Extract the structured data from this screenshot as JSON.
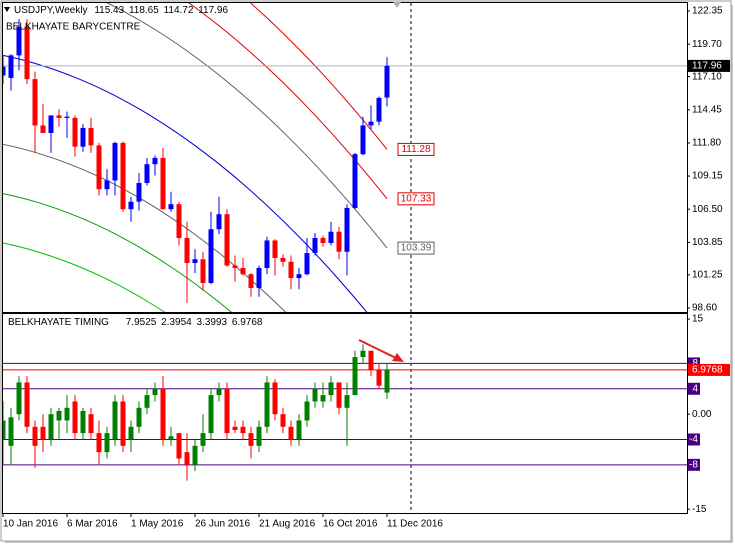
{
  "chart_data": [
    {
      "type": "candlestick",
      "symbol_label": "USDJPY,Weekly",
      "title": "BELKHAYATE BARYCENTRE",
      "categories": [
        "10 Jan 2016",
        null,
        null,
        null,
        null,
        null,
        null,
        null,
        "6 Mar 2016",
        null,
        null,
        null,
        null,
        null,
        null,
        null,
        "1 May 2016",
        null,
        null,
        null,
        null,
        null,
        null,
        null,
        "26 Jun 2016",
        null,
        null,
        null,
        null,
        null,
        null,
        null,
        "21 Aug 2016",
        null,
        null,
        null,
        null,
        null,
        null,
        null,
        "16 Oct 2016",
        null,
        null,
        null,
        null,
        null,
        null,
        null,
        "11 Dec 2016"
      ],
      "open": [
        117.2,
        117.0,
        118.8,
        121.1,
        116.9,
        113.2,
        112.6,
        114.0,
        113.8,
        113.8,
        111.5,
        113.0,
        111.6,
        108.1,
        108.8,
        111.8,
        106.5,
        107.1,
        108.6,
        110.1,
        110.6,
        106.5,
        106.9,
        104.2,
        102.2,
        102.5,
        100.6,
        104.9,
        106.1,
        102.0,
        101.8,
        101.3,
        100.2,
        101.8,
        104.0,
        102.6,
        102.3,
        101.0,
        101.3,
        103.0,
        104.2,
        103.8,
        104.7,
        103.1,
        106.6,
        110.9,
        113.2,
        113.5,
        115.43
      ],
      "high": [
        118.8,
        118.9,
        121.7,
        121.7,
        117.5,
        114.9,
        114.0,
        114.5,
        114.3,
        114.0,
        113.3,
        113.8,
        111.8,
        109.7,
        111.9,
        111.9,
        107.5,
        109.4,
        110.6,
        110.8,
        111.4,
        107.9,
        107.1,
        105.5,
        103.3,
        103.1,
        106.3,
        107.5,
        106.5,
        102.8,
        102.6,
        101.4,
        102.0,
        104.3,
        104.1,
        102.9,
        102.8,
        101.8,
        104.2,
        104.6,
        104.4,
        105.5,
        105.1,
        106.9,
        111.0,
        113.9,
        114.8,
        115.5,
        118.65
      ],
      "low": [
        116.5,
        115.98,
        117.6,
        116.5,
        110.99,
        112.6,
        111.0,
        113.1,
        112.2,
        110.7,
        111.1,
        111.0,
        107.6,
        107.6,
        107.6,
        106.3,
        105.5,
        106.4,
        108.4,
        109.2,
        106.5,
        106.3,
        103.6,
        99.0,
        101.4,
        99.99,
        100.5,
        104.5,
        101.9,
        100.7,
        101.2,
        99.5,
        99.5,
        101.3,
        101.2,
        101.9,
        100.1,
        100.1,
        101.2,
        102.8,
        103.5,
        103.6,
        102.5,
        101.2,
        106.5,
        110.8,
        112.9,
        113.2,
        114.72
      ],
      "close": [
        117.9,
        118.8,
        121.1,
        116.9,
        113.2,
        112.6,
        114.0,
        113.8,
        113.9,
        111.5,
        113.0,
        111.6,
        108.1,
        108.8,
        111.8,
        106.5,
        107.1,
        108.6,
        110.1,
        110.6,
        106.5,
        106.9,
        104.2,
        102.2,
        102.5,
        100.6,
        104.9,
        106.1,
        102.0,
        101.8,
        101.3,
        100.2,
        101.8,
        104.0,
        102.6,
        102.3,
        101.0,
        101.3,
        103.0,
        104.2,
        103.8,
        104.7,
        103.1,
        106.6,
        110.9,
        113.2,
        113.5,
        115.4,
        117.96
      ],
      "up_color": "#0000ff",
      "down_color": "#ff0000",
      "barycentre": {
        "color": "#0000cd",
        "values": [
          118.8,
          118.66,
          118.51,
          118.34,
          118.16,
          117.96,
          117.75,
          117.53,
          117.29,
          117.04,
          116.78,
          116.5,
          116.21,
          115.9,
          115.58,
          115.24,
          114.89,
          114.53,
          114.15,
          113.76,
          113.35,
          112.93,
          112.5,
          112.05,
          111.59,
          111.11,
          110.62,
          110.12,
          109.6,
          109.07,
          108.52,
          107.96,
          107.38,
          106.8,
          106.19,
          105.58,
          104.94,
          104.3,
          103.64,
          102.97,
          102.28,
          101.58,
          100.86,
          100.13,
          99.39,
          98.63,
          97.86,
          97.08,
          96.28
        ]
      },
      "bands": [
        {
          "color": "#606060",
          "offset": 7.11,
          "end_label": 103.39
        },
        {
          "color": "#e00000",
          "offset": 11.05,
          "end_label": 107.33
        },
        {
          "color": "#e00000",
          "offset": 15.0,
          "end_label": 111.28
        },
        {
          "color": "#606060",
          "offset": -7.11
        },
        {
          "color": "#00a000",
          "offset": -11.05
        },
        {
          "color": "#00c000",
          "offset": -15.0
        }
      ],
      "ylim": [
        98.28,
        123.07
      ],
      "yticks": [
        122.35,
        {
          "value": 119.7,
          "label": "119.70"
        },
        {
          "value": 117.1,
          "label": "117.10"
        },
        114.45,
        {
          "value": 111.8,
          "label": "111.80"
        },
        109.15,
        {
          "value": 106.5,
          "label": "106.50"
        },
        103.85,
        101.25,
        {
          "value": 98.6,
          "label": "98.60"
        }
      ]
    },
    {
      "type": "candlestick",
      "title": "BELKHAYATE TIMING",
      "high": [
        2,
        1,
        6,
        6,
        -1,
        0,
        1,
        1,
        3,
        3,
        1,
        1,
        -1,
        -2,
        3,
        3,
        -1,
        2,
        4,
        5,
        6,
        -2,
        -3,
        -3,
        -4,
        0,
        4,
        5,
        5,
        -1,
        -1,
        -2,
        -1,
        6,
        5.5,
        1,
        -1,
        0,
        3,
        5,
        5,
        6,
        5,
        5,
        10,
        11,
        10,
        8,
        7.9525
      ],
      "low": [
        -8,
        -8,
        -1,
        -3,
        -8.5,
        -6,
        -5,
        -4,
        -3,
        -4,
        -4,
        -4,
        -8,
        -7,
        -5,
        -6,
        -6,
        -3,
        0,
        2,
        -5,
        -5,
        -8,
        -10.5,
        -9,
        -6,
        -4,
        2,
        -4,
        -3,
        -4,
        -7,
        -6,
        -3,
        -1,
        -3,
        -5,
        -5,
        -2,
        1,
        1,
        2,
        0,
        -5,
        3,
        8,
        6,
        4,
        2.3954
      ],
      "open": [
        -4,
        -5,
        0,
        5,
        -2,
        -2,
        -4,
        -1,
        -1,
        2,
        -3,
        0,
        -3,
        -6,
        -4,
        2,
        -4,
        -2,
        1,
        3,
        4,
        -4,
        -3,
        -6,
        -8,
        -5,
        -3,
        3,
        4,
        -2,
        -2,
        -3,
        -5,
        -2,
        5,
        0,
        -2,
        -4,
        -1,
        2,
        2,
        3,
        5,
        1,
        3,
        9,
        10,
        7,
        3.3993
      ],
      "close": [
        -1,
        -0.5,
        5,
        -2,
        -5,
        -4,
        0,
        0.5,
        1,
        -3,
        0.5,
        -3,
        -6,
        -3,
        2,
        -5,
        -2,
        1,
        3,
        4,
        -4,
        -3.5,
        -7,
        -8,
        -5,
        -3,
        3,
        4,
        -3,
        -2.5,
        -3,
        -5,
        -2,
        5,
        0,
        -2,
        -4,
        -1,
        2,
        4,
        3,
        5,
        1,
        3,
        9,
        10,
        7,
        4.5,
        6.9768
      ],
      "up_color": "#008000",
      "down_color": "#ff0000",
      "levels": [
        8,
        4,
        -4,
        -8
      ],
      "level_color": "#4b0082",
      "close_line_color": "#ff0000",
      "ylim": [
        -15.6,
        15.8
      ],
      "yticks": [
        15,
        {
          "value": 0,
          "label": "0.00"
        },
        -15
      ]
    }
  ]
}
